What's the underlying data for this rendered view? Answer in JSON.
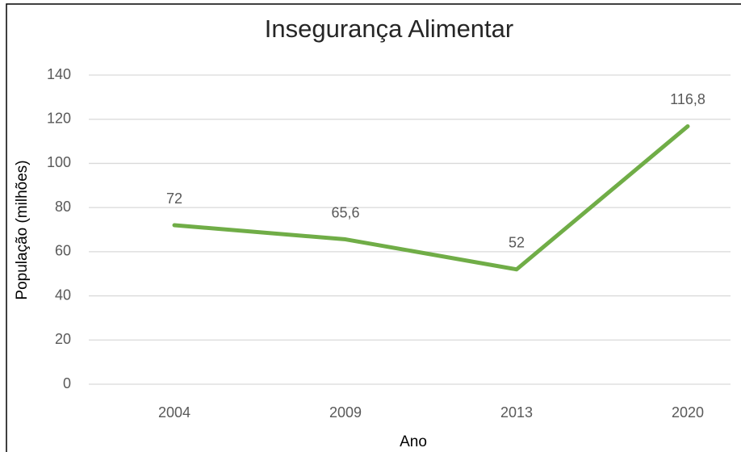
{
  "chart_data": {
    "type": "line",
    "title": "Insegurança Alimentar",
    "x_label": "Ano",
    "y_label": "População (milhões)",
    "categories": [
      "2004",
      "2009",
      "2013",
      "2020"
    ],
    "values": [
      72,
      65.6,
      52,
      116.8
    ],
    "value_labels": [
      "72",
      "65,6",
      "52",
      "116,8"
    ],
    "color": "#70ad47",
    "ylim": [
      0,
      140
    ],
    "yticks": [
      0,
      20,
      40,
      60,
      80,
      100,
      120,
      140
    ],
    "grid": true
  }
}
